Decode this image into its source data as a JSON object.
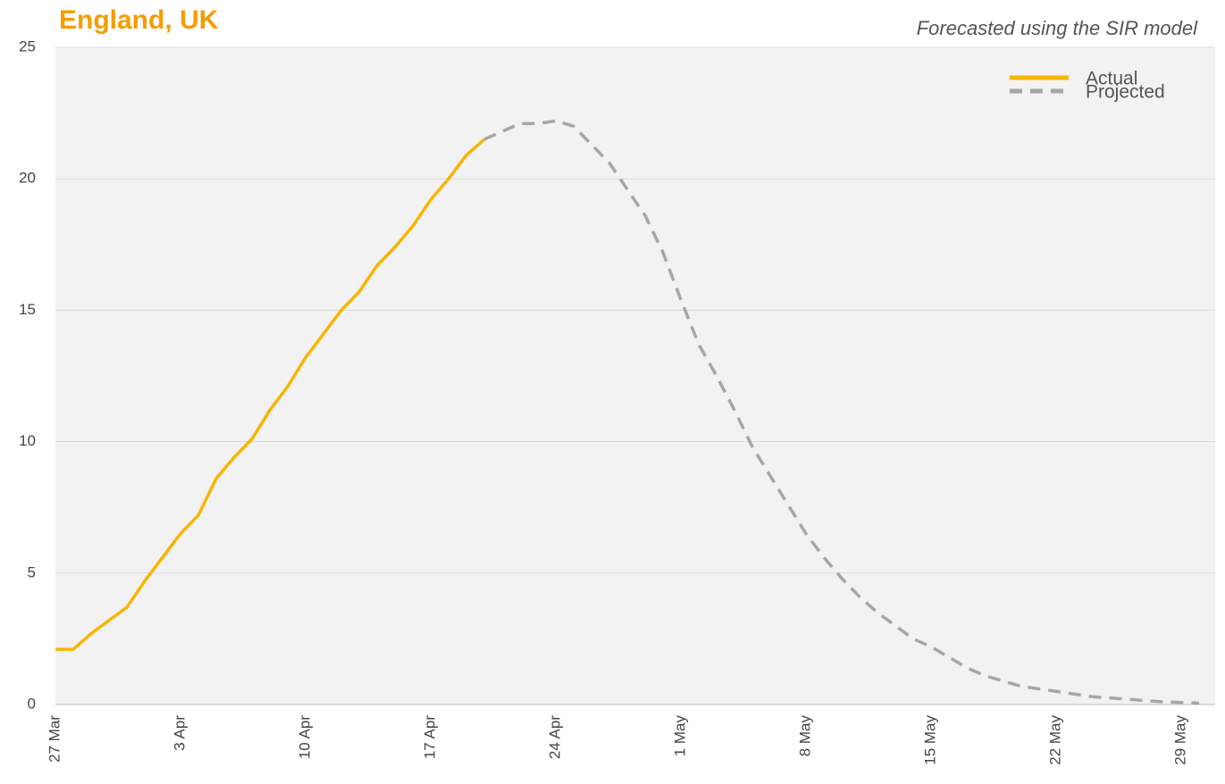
{
  "chart_data": {
    "type": "line",
    "title": "England, UK",
    "subtitle": "Forecasted using the SIR model",
    "categories": [
      "27 Mar",
      null,
      null,
      null,
      null,
      null,
      null,
      "3 Apr",
      null,
      null,
      null,
      null,
      null,
      null,
      "10 Apr",
      null,
      null,
      null,
      null,
      null,
      null,
      "17 Apr",
      null,
      null,
      null,
      null,
      null,
      null,
      "24 Apr",
      null,
      null,
      null,
      null,
      null,
      null,
      "1 May",
      null,
      null,
      null,
      null,
      null,
      null,
      "8 May",
      null,
      null,
      null,
      null,
      null,
      null,
      "15 May",
      null,
      null,
      null,
      null,
      null,
      null,
      "22 May",
      null,
      null,
      null,
      null,
      null,
      null,
      "29 May",
      null
    ],
    "series": [
      {
        "name": "Actual",
        "color": "#f7b500",
        "dash": false,
        "values": [
          2.1,
          2.1,
          2.7,
          3.2,
          3.7,
          4.7,
          5.6,
          6.5,
          7.2,
          8.6,
          9.4,
          10.1,
          11.2,
          12.1,
          13.2,
          14.1,
          15.0,
          15.7,
          16.7,
          17.4,
          18.2,
          19.2,
          20.0,
          20.9,
          21.5,
          null,
          null,
          null,
          null,
          null,
          null,
          null,
          null,
          null,
          null,
          null,
          null,
          null,
          null,
          null,
          null,
          null,
          null,
          null,
          null,
          null,
          null,
          null,
          null,
          null,
          null,
          null,
          null,
          null,
          null,
          null,
          null,
          null,
          null,
          null,
          null,
          null,
          null,
          null,
          null
        ]
      },
      {
        "name": "Projected",
        "color": "#a6a6a6",
        "dash": true,
        "values": [
          null,
          null,
          null,
          null,
          null,
          null,
          null,
          null,
          null,
          null,
          null,
          null,
          null,
          null,
          null,
          null,
          null,
          null,
          null,
          null,
          null,
          null,
          null,
          null,
          21.5,
          21.8,
          22.1,
          22.1,
          22.2,
          22.0,
          21.3,
          20.6,
          19.6,
          18.6,
          17.2,
          15.4,
          13.7,
          12.5,
          11.2,
          9.8,
          8.7,
          7.6,
          6.5,
          5.6,
          4.8,
          4.1,
          3.5,
          3.0,
          2.5,
          2.2,
          1.8,
          1.4,
          1.1,
          0.9,
          0.7,
          0.6,
          0.5,
          0.4,
          0.3,
          0.25,
          0.2,
          0.15,
          0.1,
          0.08,
          0.05
        ]
      }
    ],
    "ylim": [
      0,
      25
    ],
    "yticks": [
      0,
      5,
      10,
      15,
      20,
      25
    ],
    "grid": true,
    "legend": "top-right"
  }
}
